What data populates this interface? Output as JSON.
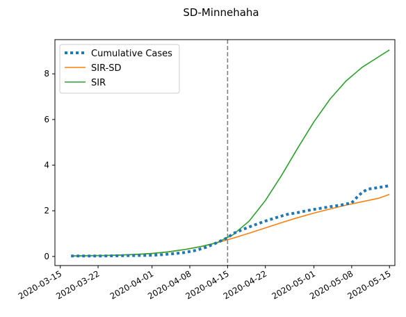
{
  "chart_data": {
    "type": "line",
    "title": "SD-Minnehaha",
    "xlabel": "",
    "ylabel": "",
    "x_axis": {
      "kind": "date",
      "range": [
        "2020-03-14",
        "2020-05-16"
      ],
      "ticks": [
        "2020-03-15",
        "2020-03-22",
        "2020-04-01",
        "2020-04-08",
        "2020-04-15",
        "2020-04-22",
        "2020-05-01",
        "2020-05-08",
        "2020-05-15"
      ]
    },
    "y_axis": {
      "range": [
        -0.4,
        9.5
      ],
      "ticks": [
        0,
        2,
        4,
        6,
        8
      ]
    },
    "grid": false,
    "legend_position": "upper left",
    "vertical_reference_line": {
      "x": "2020-04-15",
      "style": "dashed",
      "color": "#7f7f7f"
    },
    "series": [
      {
        "name": "Cumulative Cases",
        "style": "dotted",
        "color": "#1f77b4",
        "points": [
          [
            "2020-03-17",
            0.02
          ],
          [
            "2020-03-20",
            0.02
          ],
          [
            "2020-03-23",
            0.02
          ],
          [
            "2020-03-26",
            0.03
          ],
          [
            "2020-03-29",
            0.04
          ],
          [
            "2020-04-01",
            0.05
          ],
          [
            "2020-04-03",
            0.08
          ],
          [
            "2020-04-05",
            0.12
          ],
          [
            "2020-04-07",
            0.17
          ],
          [
            "2020-04-09",
            0.26
          ],
          [
            "2020-04-11",
            0.4
          ],
          [
            "2020-04-13",
            0.6
          ],
          [
            "2020-04-15",
            0.82
          ],
          [
            "2020-04-16",
            1.0
          ],
          [
            "2020-04-18",
            1.2
          ],
          [
            "2020-04-20",
            1.38
          ],
          [
            "2020-04-22",
            1.55
          ],
          [
            "2020-04-24",
            1.7
          ],
          [
            "2020-04-26",
            1.84
          ],
          [
            "2020-04-28",
            1.92
          ],
          [
            "2020-04-30",
            2.02
          ],
          [
            "2020-05-02",
            2.1
          ],
          [
            "2020-05-04",
            2.18
          ],
          [
            "2020-05-06",
            2.25
          ],
          [
            "2020-05-08",
            2.35
          ],
          [
            "2020-05-09",
            2.6
          ],
          [
            "2020-05-10",
            2.82
          ],
          [
            "2020-05-11",
            2.95
          ],
          [
            "2020-05-13",
            3.02
          ],
          [
            "2020-05-15",
            3.1
          ]
        ]
      },
      {
        "name": "SIR-SD",
        "style": "solid",
        "color": "#ff7f0e",
        "points": [
          [
            "2020-03-17",
            0.02
          ],
          [
            "2020-03-20",
            0.03
          ],
          [
            "2020-03-23",
            0.04
          ],
          [
            "2020-03-26",
            0.06
          ],
          [
            "2020-03-29",
            0.09
          ],
          [
            "2020-04-01",
            0.13
          ],
          [
            "2020-04-04",
            0.2
          ],
          [
            "2020-04-07",
            0.3
          ],
          [
            "2020-04-10",
            0.43
          ],
          [
            "2020-04-13",
            0.6
          ],
          [
            "2020-04-16",
            0.8
          ],
          [
            "2020-04-19",
            1.02
          ],
          [
            "2020-04-22",
            1.25
          ],
          [
            "2020-04-25",
            1.48
          ],
          [
            "2020-04-28",
            1.7
          ],
          [
            "2020-05-01",
            1.9
          ],
          [
            "2020-05-04",
            2.08
          ],
          [
            "2020-05-07",
            2.25
          ],
          [
            "2020-05-10",
            2.4
          ],
          [
            "2020-05-13",
            2.55
          ],
          [
            "2020-05-15",
            2.72
          ]
        ]
      },
      {
        "name": "SIR",
        "style": "solid",
        "color": "#2ca02c",
        "points": [
          [
            "2020-03-17",
            0.02
          ],
          [
            "2020-03-20",
            0.03
          ],
          [
            "2020-03-23",
            0.04
          ],
          [
            "2020-03-26",
            0.06
          ],
          [
            "2020-03-29",
            0.09
          ],
          [
            "2020-04-01",
            0.13
          ],
          [
            "2020-04-04",
            0.2
          ],
          [
            "2020-04-07",
            0.3
          ],
          [
            "2020-04-10",
            0.43
          ],
          [
            "2020-04-13",
            0.6
          ],
          [
            "2020-04-16",
            0.95
          ],
          [
            "2020-04-19",
            1.55
          ],
          [
            "2020-04-22",
            2.45
          ],
          [
            "2020-04-25",
            3.55
          ],
          [
            "2020-04-28",
            4.75
          ],
          [
            "2020-05-01",
            5.9
          ],
          [
            "2020-05-04",
            6.9
          ],
          [
            "2020-05-07",
            7.7
          ],
          [
            "2020-05-10",
            8.3
          ],
          [
            "2020-05-13",
            8.75
          ],
          [
            "2020-05-15",
            9.05
          ]
        ]
      }
    ]
  }
}
